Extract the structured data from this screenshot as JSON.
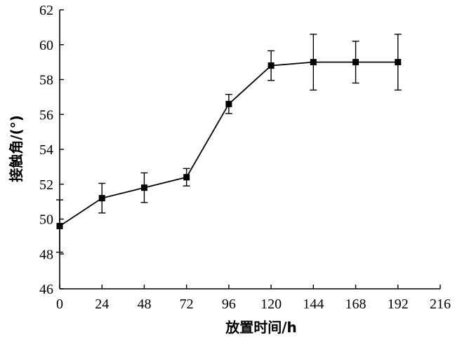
{
  "chart_data": {
    "type": "line",
    "title": "",
    "xlabel": "放置时间/h",
    "ylabel": "接触角/(°)",
    "xlim": [
      0,
      216
    ],
    "ylim": [
      46,
      62
    ],
    "x_ticks": [
      0,
      24,
      48,
      72,
      96,
      120,
      144,
      168,
      192,
      216
    ],
    "y_ticks": [
      46,
      48,
      50,
      52,
      54,
      56,
      58,
      60,
      62
    ],
    "grid": false,
    "legend": "none",
    "series": [
      {
        "x": [
          0,
          24,
          48,
          72,
          96,
          120,
          144,
          168,
          192
        ],
        "y": [
          49.6,
          51.2,
          51.8,
          52.4,
          56.6,
          58.8,
          59.0,
          59.0,
          59.0
        ],
        "error": [
          1.5,
          0.85,
          0.85,
          0.5,
          0.55,
          0.85,
          1.6,
          1.2,
          1.6
        ],
        "marker": "square",
        "color": "#000000"
      }
    ]
  }
}
